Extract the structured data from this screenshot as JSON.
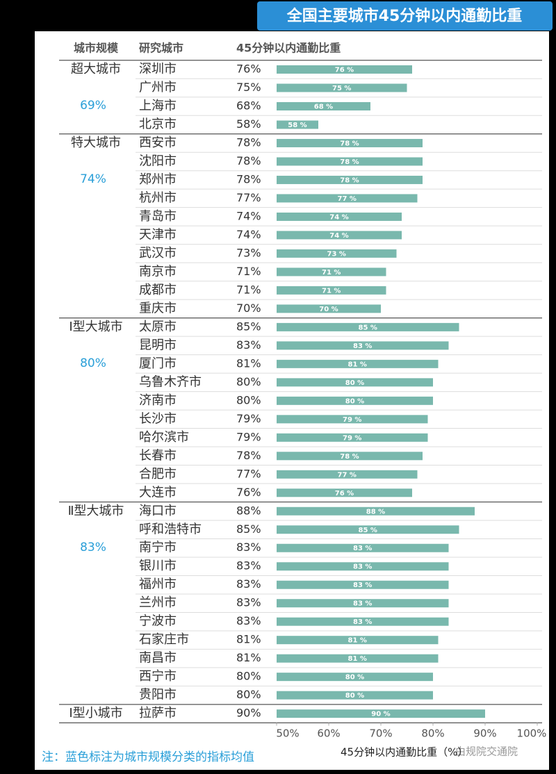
{
  "chart_data": {
    "type": "bar",
    "title": "全国主要城市45分钟以内通勤比重",
    "headers": [
      "城市规模",
      "研究城市",
      "45分钟以内通勤比重"
    ],
    "groups": [
      {
        "name": "超大城市",
        "average": "69%",
        "categories": [
          "深圳市",
          "广州市",
          "上海市",
          "北京市"
        ],
        "values": [
          76,
          75,
          68,
          58
        ],
        "percent_labels": [
          "76%",
          "75%",
          "68%",
          "58%"
        ],
        "value_labels": [
          "76 %",
          "75 %",
          "68 %",
          "58 %"
        ]
      },
      {
        "name": "特大城市",
        "average": "74%",
        "categories": [
          "西安市",
          "沈阳市",
          "郑州市",
          "杭州市",
          "青岛市",
          "天津市",
          "武汉市",
          "南京市",
          "成都市",
          "重庆市"
        ],
        "values": [
          78,
          78,
          78,
          77,
          74,
          74,
          73,
          71,
          71,
          70
        ],
        "percent_labels": [
          "78%",
          "78%",
          "78%",
          "77%",
          "74%",
          "74%",
          "73%",
          "71%",
          "71%",
          "70%"
        ],
        "value_labels": [
          "78 %",
          "78 %",
          "78 %",
          "77 %",
          "74 %",
          "74 %",
          "73 %",
          "71 %",
          "71 %",
          "70 %"
        ]
      },
      {
        "name": "Ⅰ型大城市",
        "average": "80%",
        "categories": [
          "太原市",
          "昆明市",
          "厦门市",
          "乌鲁木齐市",
          "济南市",
          "长沙市",
          "哈尔滨市",
          "长春市",
          "合肥市",
          "大连市"
        ],
        "values": [
          85,
          83,
          81,
          80,
          80,
          79,
          79,
          78,
          77,
          76
        ],
        "percent_labels": [
          "85%",
          "83%",
          "81%",
          "80%",
          "80%",
          "79%",
          "79%",
          "78%",
          "77%",
          "76%"
        ],
        "value_labels": [
          "85 %",
          "83 %",
          "81 %",
          "80 %",
          "80 %",
          "79 %",
          "79 %",
          "78 %",
          "77 %",
          "76 %"
        ]
      },
      {
        "name": "Ⅱ型大城市",
        "average": "83%",
        "categories": [
          "海口市",
          "呼和浩特市",
          "南宁市",
          "银川市",
          "福州市",
          "兰州市",
          "宁波市",
          "石家庄市",
          "南昌市",
          "西宁市",
          "贵阳市"
        ],
        "values": [
          88,
          85,
          83,
          83,
          83,
          83,
          83,
          81,
          81,
          80,
          80
        ],
        "percent_labels": [
          "88%",
          "85%",
          "83%",
          "83%",
          "83%",
          "83%",
          "83%",
          "81%",
          "81%",
          "80%",
          "80%"
        ],
        "value_labels": [
          "88 %",
          "85 %",
          "83 %",
          "83 %",
          "83 %",
          "83 %",
          "83 %",
          "81 %",
          "81 %",
          "80 %",
          "80 %"
        ]
      },
      {
        "name": "Ⅰ型小城市",
        "categories": [
          "拉萨市"
        ],
        "values": [
          90
        ],
        "percent_labels": [
          "90%"
        ],
        "value_labels": [
          "90 %"
        ]
      }
    ],
    "color": "#79b8ad",
    "xlim": [
      50,
      100
    ],
    "xticks": [
      {
        "value": 50,
        "label": "50%"
      },
      {
        "value": 60,
        "label": "60%"
      },
      {
        "value": 70,
        "label": "70%"
      },
      {
        "value": 80,
        "label": "80%"
      },
      {
        "value": 90,
        "label": "90%"
      },
      {
        "value": 100,
        "label": "100%"
      }
    ],
    "xlabel": "45分钟以内通勤比重（%）",
    "note": "注：蓝色标注为城市规模分类的指标均值",
    "watermark": "由规院交通院"
  }
}
